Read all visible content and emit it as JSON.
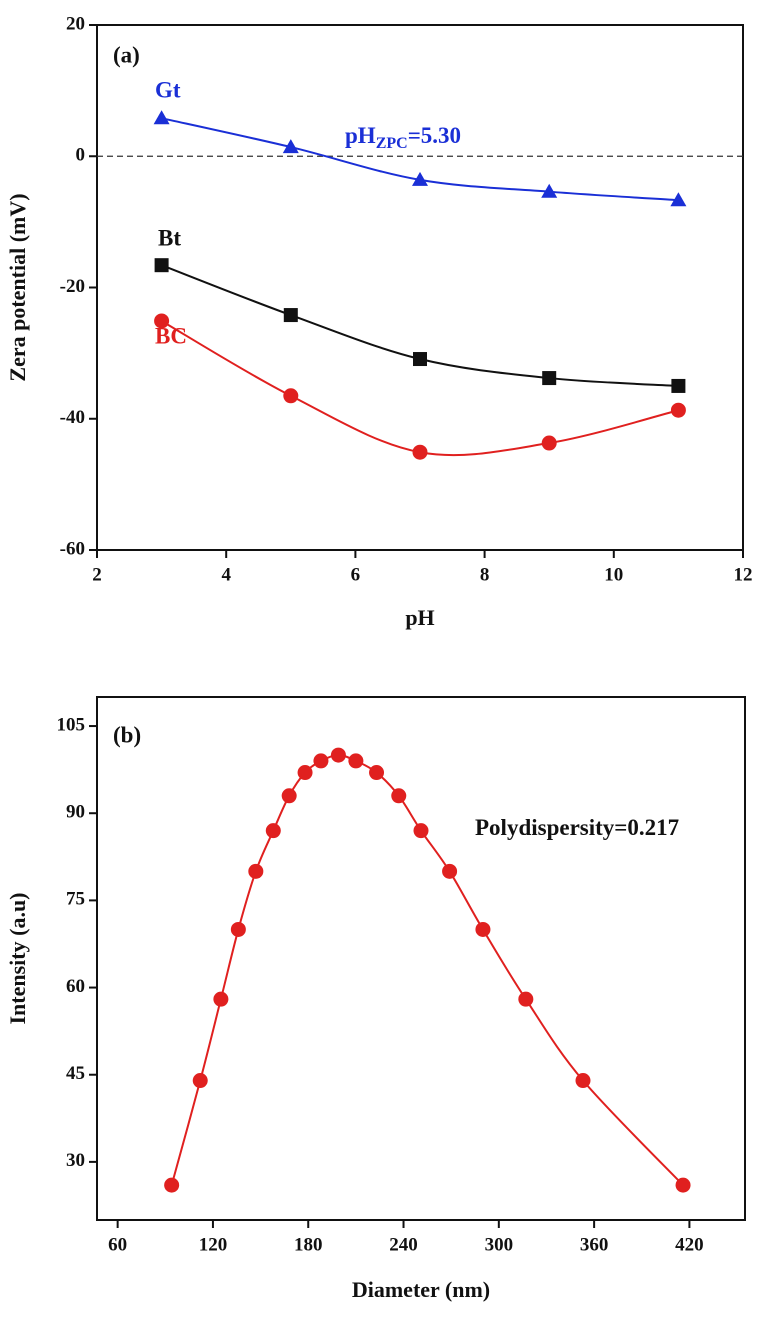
{
  "chart_data": [
    {
      "type": "line",
      "label": "(a)",
      "xlabel": "pH",
      "ylabel": "Zera potential (mV)",
      "x": [
        3,
        5,
        7,
        9,
        11
      ],
      "xlim": [
        2,
        12
      ],
      "xticks": [
        2,
        4,
        6,
        8,
        10,
        12
      ],
      "ylim": [
        -60,
        20
      ],
      "yticks": [
        -60,
        -40,
        -20,
        0,
        20
      ],
      "reference_line": 0,
      "annotation": {
        "parts": [
          "pH",
          "ZPC",
          "=5.30"
        ],
        "color": "#1a2fd6"
      },
      "series": [
        {
          "name": "Gt",
          "color": "#1a2fd6",
          "marker": "triangle",
          "values": [
            5.8,
            1.4,
            -3.6,
            -5.4,
            -6.7
          ]
        },
        {
          "name": "Bt",
          "color": "#111111",
          "marker": "square",
          "values": [
            -16.6,
            -24.2,
            -30.9,
            -33.8,
            -35.0
          ]
        },
        {
          "name": "BC",
          "color": "#e0201f",
          "marker": "circle",
          "values": [
            -25.1,
            -36.5,
            -45.1,
            -43.7,
            -38.7
          ]
        }
      ]
    },
    {
      "type": "line",
      "label": "(b)",
      "xlabel": "Diameter (nm)",
      "ylabel": "Intensity (a.u)",
      "x": [
        94,
        112,
        125,
        136,
        147,
        158,
        168,
        178,
        188,
        199,
        210,
        223,
        237,
        251,
        269,
        290,
        317,
        353,
        416
      ],
      "xlim": [
        47,
        455
      ],
      "xticks": [
        60,
        120,
        180,
        240,
        300,
        360,
        420
      ],
      "ylim": [
        20,
        110
      ],
      "yticks": [
        30,
        45,
        60,
        75,
        90,
        105
      ],
      "annotation": {
        "parts": [
          "Polydispersity=0.217"
        ],
        "color": "#111111"
      },
      "series": [
        {
          "color": "#e0201f",
          "marker": "circle",
          "values": [
            26,
            44,
            58,
            70,
            80,
            87,
            93,
            97,
            99,
            100,
            99,
            97,
            93,
            87,
            80,
            70,
            58,
            44,
            26
          ]
        }
      ]
    }
  ]
}
